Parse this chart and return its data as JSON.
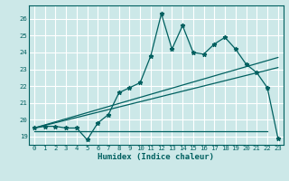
{
  "xlabel": "Humidex (Indice chaleur)",
  "xlim": [
    -0.5,
    23.5
  ],
  "ylim": [
    18.5,
    26.8
  ],
  "yticks": [
    19,
    20,
    21,
    22,
    23,
    24,
    25,
    26
  ],
  "xticks": [
    0,
    1,
    2,
    3,
    4,
    5,
    6,
    7,
    8,
    9,
    10,
    11,
    12,
    13,
    14,
    15,
    16,
    17,
    18,
    19,
    20,
    21,
    22,
    23
  ],
  "bg_color": "#cce8e8",
  "grid_color": "#ffffff",
  "line_color": "#006060",
  "line1_x": [
    0,
    1,
    2,
    3,
    4,
    5,
    6,
    7,
    8,
    9,
    10,
    11,
    12,
    13,
    14,
    15,
    16,
    17,
    18,
    19,
    20,
    21,
    22,
    23
  ],
  "line1_y": [
    19.5,
    19.6,
    19.6,
    19.5,
    19.5,
    18.8,
    19.8,
    20.3,
    21.6,
    21.9,
    22.2,
    23.8,
    26.3,
    24.2,
    25.6,
    24.0,
    23.9,
    24.5,
    24.9,
    24.2,
    23.3,
    22.8,
    21.9,
    18.9
  ],
  "line2_x": [
    0,
    23
  ],
  "line2_y": [
    19.5,
    23.7
  ],
  "line3_x": [
    0,
    23
  ],
  "line3_y": [
    19.5,
    23.1
  ],
  "line4_x": [
    0,
    22
  ],
  "line4_y": [
    19.3,
    19.3
  ]
}
